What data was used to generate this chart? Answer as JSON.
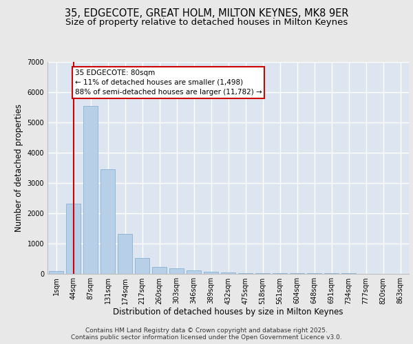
{
  "title1": "35, EDGECOTE, GREAT HOLM, MILTON KEYNES, MK8 9ER",
  "title2": "Size of property relative to detached houses in Milton Keynes",
  "xlabel": "Distribution of detached houses by size in Milton Keynes",
  "ylabel": "Number of detached properties",
  "categories": [
    "1sqm",
    "44sqm",
    "87sqm",
    "131sqm",
    "174sqm",
    "217sqm",
    "260sqm",
    "303sqm",
    "346sqm",
    "389sqm",
    "432sqm",
    "475sqm",
    "518sqm",
    "561sqm",
    "604sqm",
    "648sqm",
    "691sqm",
    "734sqm",
    "777sqm",
    "820sqm",
    "863sqm"
  ],
  "values": [
    70,
    2300,
    5550,
    3450,
    1320,
    520,
    210,
    175,
    100,
    60,
    35,
    15,
    10,
    5,
    3,
    2,
    1,
    1,
    0,
    0,
    0
  ],
  "bar_color": "#b8cfe8",
  "bar_edge_color": "#7aaad0",
  "background_color": "#dde6f0",
  "grid_color": "#ffffff",
  "annotation_text": "35 EDGECOTE: 80sqm\n← 11% of detached houses are smaller (1,498)\n88% of semi-detached houses are larger (11,782) →",
  "vline_x": 1,
  "vline_color": "#cc0000",
  "annotation_box_color": "#ffffff",
  "annotation_box_edge": "#cc0000",
  "ylim": [
    0,
    7000
  ],
  "yticks": [
    0,
    1000,
    2000,
    3000,
    4000,
    5000,
    6000,
    7000
  ],
  "footer_text": "Contains HM Land Registry data © Crown copyright and database right 2025.\nContains public sector information licensed under the Open Government Licence v3.0.",
  "title_fontsize": 10.5,
  "subtitle_fontsize": 9.5,
  "tick_fontsize": 7,
  "ylabel_fontsize": 8.5,
  "xlabel_fontsize": 8.5,
  "footer_fontsize": 6.5,
  "fig_facecolor": "#e8e8e8"
}
